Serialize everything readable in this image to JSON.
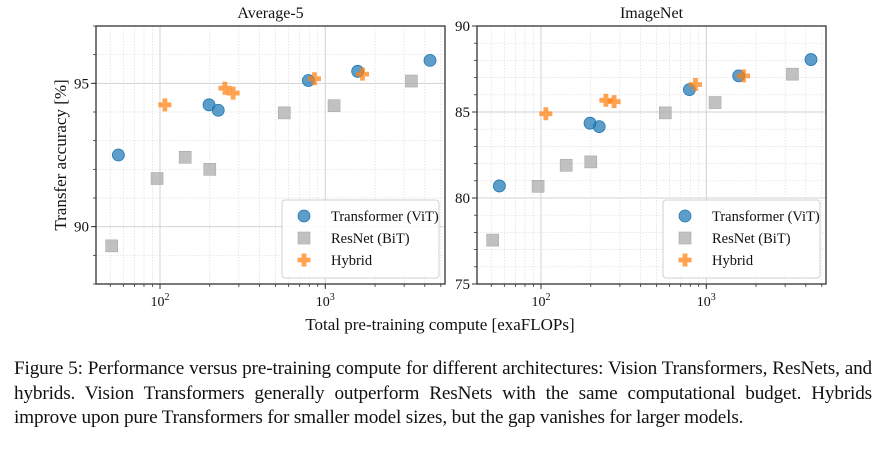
{
  "figure": {
    "shared_xlabel": "Total pre-training compute [exaFLOPs]",
    "shared_ylabel": "Transfer accuracy [%]",
    "caption": "Figure 5: Performance versus pre-training compute for different architectures: Vision Transformers, ResNets, and hybrids. Vision Transformers generally outperform ResNets with the same computational budget. Hybrids improve upon pure Transformers for smaller model sizes, but the gap vanishes for larger models."
  },
  "legend": [
    {
      "name": "Transformer (ViT)",
      "marker": "circle",
      "color": "#1f77b4"
    },
    {
      "name": "ResNet (BiT)",
      "marker": "square",
      "color": "#a9a9a9"
    },
    {
      "name": "Hybrid",
      "marker": "plus",
      "color": "#ff7f0e"
    }
  ],
  "chart_data": [
    {
      "type": "scatter",
      "title": "Average-5",
      "xlabel": "Total pre-training compute [exaFLOPs]",
      "ylabel": "Transfer accuracy [%]",
      "xscale": "log",
      "xlim": [
        41,
        5300
      ],
      "ylim": [
        88,
        97
      ],
      "xticks": [
        {
          "value": 100,
          "label": "10²"
        },
        {
          "value": 1000,
          "label": "10³"
        }
      ],
      "yticks": [
        {
          "value": 90,
          "label": "90"
        },
        {
          "value": 95,
          "label": "95"
        }
      ],
      "grid": true,
      "legend_position": "lower-right",
      "series": [
        {
          "name": "Transformer (ViT)",
          "points": [
            [
              56,
              92.5
            ],
            [
              198,
              94.25
            ],
            [
              225,
              94.06
            ],
            [
              790,
              95.1
            ],
            [
              1570,
              95.42
            ],
            [
              4300,
              95.8
            ]
          ]
        },
        {
          "name": "ResNet (BiT)",
          "points": [
            [
              51,
              89.33
            ],
            [
              96,
              91.68
            ],
            [
              142,
              92.42
            ],
            [
              200,
              92.0
            ],
            [
              565,
              93.97
            ],
            [
              1130,
              94.22
            ],
            [
              3320,
              95.08
            ]
          ]
        },
        {
          "name": "Hybrid",
          "points": [
            [
              107,
              94.25
            ],
            [
              247,
              94.83
            ],
            [
              277,
              94.66
            ],
            [
              860,
              95.16
            ],
            [
              1680,
              95.32
            ]
          ]
        }
      ]
    },
    {
      "type": "scatter",
      "title": "ImageNet",
      "xlabel": "Total pre-training compute [exaFLOPs]",
      "ylabel": "",
      "xscale": "log",
      "xlim": [
        41,
        5300
      ],
      "ylim": [
        75,
        90
      ],
      "xticks": [
        {
          "value": 100,
          "label": "10²"
        },
        {
          "value": 1000,
          "label": "10³"
        }
      ],
      "yticks": [
        {
          "value": 75,
          "label": "75"
        },
        {
          "value": 80,
          "label": "80"
        },
        {
          "value": 85,
          "label": "85"
        },
        {
          "value": 90,
          "label": "90"
        }
      ],
      "grid": true,
      "legend_position": "lower-right",
      "series": [
        {
          "name": "Transformer (ViT)",
          "points": [
            [
              56,
              80.7
            ],
            [
              198,
              84.35
            ],
            [
              225,
              84.15
            ],
            [
              790,
              86.3
            ],
            [
              1570,
              87.1
            ],
            [
              4300,
              88.05
            ]
          ]
        },
        {
          "name": "ResNet (BiT)",
          "points": [
            [
              51,
              77.55
            ],
            [
              96,
              80.68
            ],
            [
              142,
              81.9
            ],
            [
              200,
              82.1
            ],
            [
              565,
              84.95
            ],
            [
              1130,
              85.55
            ],
            [
              3320,
              87.2
            ]
          ]
        },
        {
          "name": "Hybrid",
          "points": [
            [
              107,
              84.9
            ],
            [
              247,
              85.68
            ],
            [
              277,
              85.6
            ],
            [
              860,
              86.6
            ],
            [
              1680,
              87.1
            ]
          ]
        }
      ]
    }
  ]
}
